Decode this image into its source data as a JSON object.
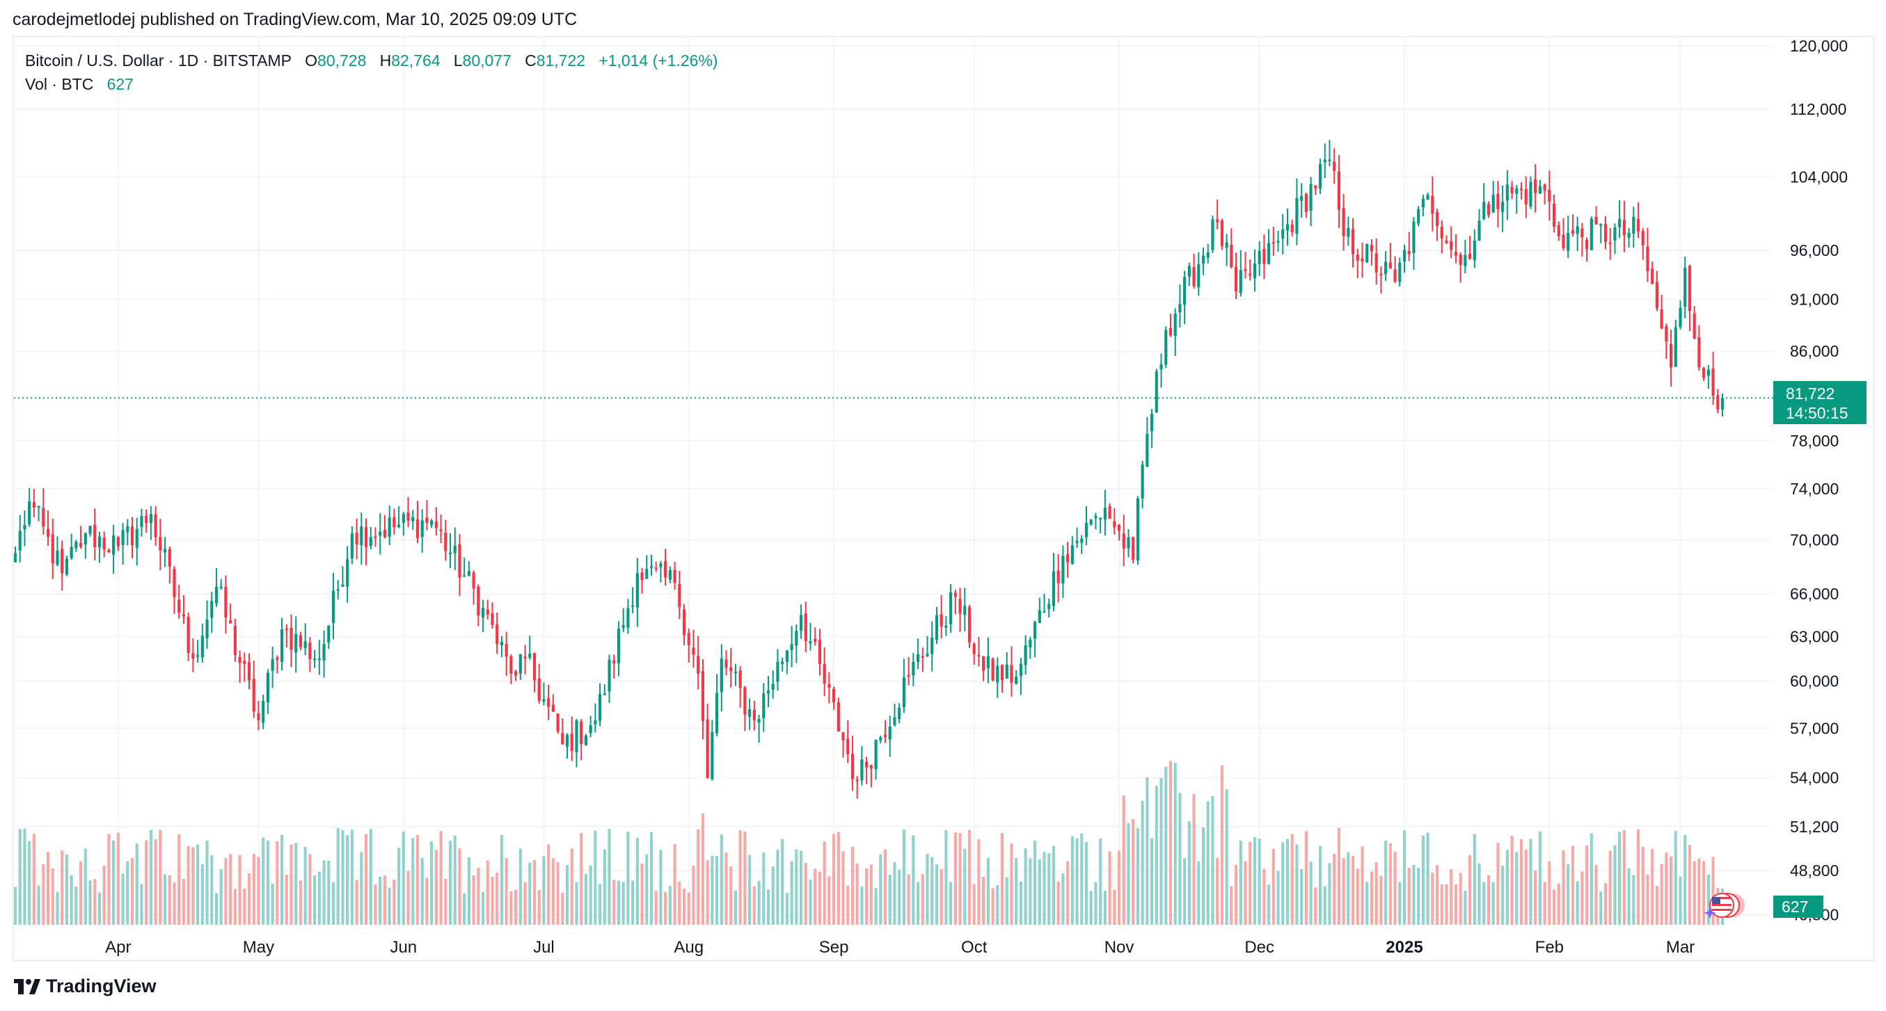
{
  "publisher_line": "carodejmetlodej published on TradingView.com, Mar 10, 2025 09:09 UTC",
  "legend": {
    "symbol": "Bitcoin / U.S. Dollar · 1D · BITSTAMP",
    "open_label": "O",
    "open": "80,728",
    "high_label": "H",
    "high": "82,764",
    "low_label": "L",
    "low": "80,077",
    "close_label": "C",
    "close": "81,722",
    "change": "+1,014 (+1.26%)",
    "vol_label": "Vol · BTC",
    "vol": "627"
  },
  "price_badge": {
    "price": "81,722",
    "countdown": "14:50:15"
  },
  "volume_badge": "627",
  "footer_brand": "TradingView",
  "colors": {
    "up": "#089981",
    "down": "#f23645",
    "up_vol": "#92d2cc",
    "down_vol": "#f7a9a7",
    "grid": "#f0f3fa",
    "text": "#131722"
  },
  "chart_data": {
    "type": "candlestick",
    "title": "Bitcoin / U.S. Dollar · 1D · BITSTAMP",
    "y_scale": "log",
    "ylim": [
      46000,
      121000
    ],
    "y_ticks": [
      120000,
      112000,
      104000,
      96000,
      91000,
      86000,
      78000,
      74000,
      70000,
      66000,
      63000,
      60000,
      57000,
      54000,
      51200,
      48800,
      46500
    ],
    "y_tick_labels": [
      "120,000",
      "112,000",
      "104,000",
      "96,000",
      "91,000",
      "86,000",
      "78,000",
      "74,000",
      "70,000",
      "66,000",
      "63,000",
      "60,000",
      "57,000",
      "54,000",
      "51,200",
      "48,800",
      "46,500"
    ],
    "x_start": "2024-03-10",
    "x_end": "2025-03-10",
    "x_ticks": [
      {
        "date": "2024-04-01",
        "label": "Apr",
        "bold": false
      },
      {
        "date": "2024-05-01",
        "label": "May",
        "bold": false
      },
      {
        "date": "2024-06-01",
        "label": "Jun",
        "bold": false
      },
      {
        "date": "2024-07-01",
        "label": "Jul",
        "bold": false
      },
      {
        "date": "2024-08-01",
        "label": "Aug",
        "bold": false
      },
      {
        "date": "2024-09-01",
        "label": "Sep",
        "bold": false
      },
      {
        "date": "2024-10-01",
        "label": "Oct",
        "bold": false
      },
      {
        "date": "2024-11-01",
        "label": "Nov",
        "bold": false
      },
      {
        "date": "2024-12-01",
        "label": "Dec",
        "bold": false
      },
      {
        "date": "2025-01-01",
        "label": "2025",
        "bold": true
      },
      {
        "date": "2025-02-01",
        "label": "Feb",
        "bold": false
      },
      {
        "date": "2025-03-01",
        "label": "Mar",
        "bold": false
      }
    ],
    "last_price": 81722,
    "approx_daily_close_anchors": [
      {
        "date": "2024-03-10",
        "close": 69000
      },
      {
        "date": "2024-03-13",
        "close": 73000
      },
      {
        "date": "2024-03-20",
        "close": 67500
      },
      {
        "date": "2024-03-25",
        "close": 70500
      },
      {
        "date": "2024-04-01",
        "close": 69500
      },
      {
        "date": "2024-04-08",
        "close": 72000
      },
      {
        "date": "2024-04-17",
        "close": 61500
      },
      {
        "date": "2024-04-22",
        "close": 66500
      },
      {
        "date": "2024-05-01",
        "close": 57500
      },
      {
        "date": "2024-05-06",
        "close": 63500
      },
      {
        "date": "2024-05-14",
        "close": 61500
      },
      {
        "date": "2024-05-21",
        "close": 70500
      },
      {
        "date": "2024-06-07",
        "close": 71500
      },
      {
        "date": "2024-06-18",
        "close": 65000
      },
      {
        "date": "2024-06-24",
        "close": 60500
      },
      {
        "date": "2024-06-27",
        "close": 61500
      },
      {
        "date": "2024-07-05",
        "close": 56000
      },
      {
        "date": "2024-07-12",
        "close": 57500
      },
      {
        "date": "2024-07-21",
        "close": 67500
      },
      {
        "date": "2024-07-29",
        "close": 66800
      },
      {
        "date": "2024-08-03",
        "close": 60500
      },
      {
        "date": "2024-08-05",
        "close": 54000
      },
      {
        "date": "2024-08-08",
        "close": 61500
      },
      {
        "date": "2024-08-15",
        "close": 57500
      },
      {
        "date": "2024-08-25",
        "close": 64500
      },
      {
        "date": "2024-09-06",
        "close": 53800
      },
      {
        "date": "2024-09-17",
        "close": 60300
      },
      {
        "date": "2024-09-27",
        "close": 65800
      },
      {
        "date": "2024-10-03",
        "close": 60700
      },
      {
        "date": "2024-10-10",
        "close": 60300
      },
      {
        "date": "2024-10-20",
        "close": 68800
      },
      {
        "date": "2024-10-29",
        "close": 72500
      },
      {
        "date": "2024-11-04",
        "close": 68500
      },
      {
        "date": "2024-11-06",
        "close": 76000
      },
      {
        "date": "2024-11-11",
        "close": 88000
      },
      {
        "date": "2024-11-22",
        "close": 99000
      },
      {
        "date": "2024-11-26",
        "close": 91800
      },
      {
        "date": "2024-12-05",
        "close": 97000
      },
      {
        "date": "2024-12-16",
        "close": 106000
      },
      {
        "date": "2024-12-19",
        "close": 97500
      },
      {
        "date": "2024-12-30",
        "close": 92800
      },
      {
        "date": "2025-01-06",
        "close": 102000
      },
      {
        "date": "2025-01-13",
        "close": 94500
      },
      {
        "date": "2025-01-20",
        "close": 102000
      },
      {
        "date": "2025-01-31",
        "close": 102500
      },
      {
        "date": "2025-02-03",
        "close": 97500
      },
      {
        "date": "2025-02-20",
        "close": 98000
      },
      {
        "date": "2025-02-27",
        "close": 84500
      },
      {
        "date": "2025-03-02",
        "close": 94200
      },
      {
        "date": "2025-03-04",
        "close": 87200
      },
      {
        "date": "2025-03-09",
        "close": 80700
      },
      {
        "date": "2025-03-10",
        "close": 81722
      }
    ]
  }
}
